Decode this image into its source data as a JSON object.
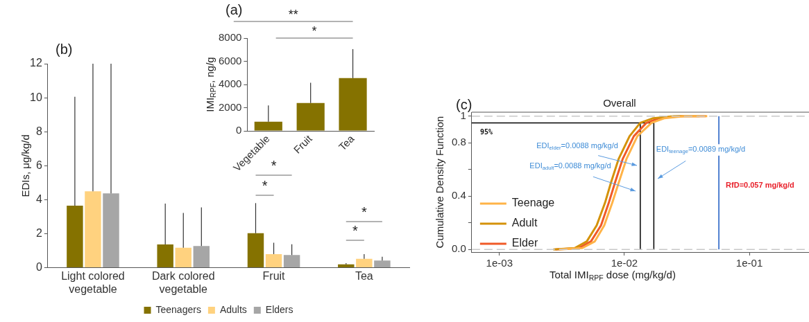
{
  "chart_data": [
    {
      "type": "bar",
      "title": "(a)",
      "ylabel": "IMI$_{RPF}$, ng/g",
      "categories": [
        "Vegetable",
        "Fruit",
        "Tea"
      ],
      "values": [
        800,
        2400,
        4550
      ],
      "errors": [
        [
          800,
          2200
        ],
        [
          2400,
          4150
        ],
        [
          4550,
          7050
        ]
      ],
      "color": "#857200",
      "ylim": [
        0,
        8000
      ],
      "yticks": [
        0,
        2000,
        4000,
        6000,
        8000
      ],
      "grid": false,
      "annotations": [
        "**",
        "*"
      ]
    },
    {
      "type": "bar",
      "title": "(b)",
      "ylabel": "EDIs, μg/kg/d",
      "categories": [
        "Light colored vegetable",
        "Dark colored vegetable",
        "Fruit",
        "Tea"
      ],
      "series": [
        {
          "name": "Teenagers",
          "color": "#857200",
          "values": [
            3.65,
            1.37,
            2.03,
            0.2
          ],
          "errors": [
            [
              3.65,
              10.05
            ],
            [
              1.37,
              3.77
            ],
            [
              2.03,
              3.8
            ],
            [
              0.2,
              0.27
            ]
          ]
        },
        {
          "name": "Adults",
          "color": "#ffd27f",
          "values": [
            4.5,
            1.18,
            0.8,
            0.52
          ],
          "errors": [
            [
              4.5,
              12
            ],
            [
              1.18,
              3.22
            ],
            [
              0.8,
              1.47
            ],
            [
              0.52,
              0.8
            ]
          ]
        },
        {
          "name": "Elders",
          "color": "#a6a6a6",
          "values": [
            4.37,
            1.28,
            0.75,
            0.42
          ],
          "errors": [
            [
              4.37,
              12
            ],
            [
              1.28,
              3.55
            ],
            [
              0.75,
              1.38
            ],
            [
              0.42,
              0.65
            ]
          ]
        }
      ],
      "ylim": [
        0,
        12
      ],
      "yticks": [
        0,
        2,
        4,
        6,
        8,
        10,
        12
      ],
      "grid": false,
      "legend": "bottom",
      "annotations": [
        "*",
        "*",
        "*",
        "*"
      ]
    },
    {
      "type": "line",
      "title": "(c)",
      "subtitle": "Overall",
      "xlabel": "Total IMI$_{RPF}$ dose (mg/kg/d)",
      "ylabel": "Cumulative Density Function",
      "log": "x",
      "series": [
        {
          "name": "Teenage",
          "color": "#ffb347",
          "x": [
            0.003,
            0.0046,
            0.0058,
            0.0069,
            0.008,
            0.009,
            0.0104,
            0.0127,
            0.0165,
            0.021,
            0.03,
            0.046
          ],
          "values": [
            0,
            0.01,
            0.06,
            0.18,
            0.35,
            0.5,
            0.68,
            0.85,
            0.95,
            0.985,
            1,
            1
          ]
        },
        {
          "name": "Adult",
          "color": "#d4920a",
          "x": [
            0.0027,
            0.004,
            0.005,
            0.006,
            0.007,
            0.0078,
            0.009,
            0.011,
            0.0134,
            0.017,
            0.025,
            0.04
          ],
          "values": [
            0,
            0.01,
            0.06,
            0.18,
            0.35,
            0.5,
            0.68,
            0.85,
            0.95,
            0.985,
            1,
            1
          ]
        },
        {
          "name": "Elder",
          "color": "#f05a28",
          "x": [
            0.0028,
            0.0043,
            0.0054,
            0.0065,
            0.0075,
            0.0084,
            0.0097,
            0.0119,
            0.015,
            0.019,
            0.028,
            0.045
          ],
          "values": [
            0,
            0.01,
            0.06,
            0.18,
            0.35,
            0.5,
            0.68,
            0.85,
            0.95,
            0.985,
            1,
            1
          ]
        },
        {
          "color": "#000000",
          "x": [
            0.0006,
            0.0172
          ],
          "values": [
            0.95,
            0.95
          ]
        },
        {
          "color": "#000000",
          "x": [
            0.0134,
            0.0134
          ],
          "values": [
            0,
            0.95
          ]
        },
        {
          "color": "#000000",
          "x": [
            0.0172,
            0.0172
          ],
          "values": [
            0,
            0.95
          ]
        }
      ],
      "xlim": [
        0.0006,
        0.3
      ],
      "xticks": [
        {
          "value": 0.001,
          "label": "1e-03"
        },
        {
          "value": 0.01,
          "label": "1e-02"
        },
        {
          "value": 0.1,
          "label": "1e-01"
        }
      ],
      "ylim": [
        -0.02,
        1.03
      ],
      "yticks": [
        {
          "value": 0,
          "label": "0.0"
        },
        {
          "value": 0.2,
          "label": null
        },
        {
          "value": 0.4,
          "label": "0.4"
        },
        {
          "value": 0.6,
          "label": null
        },
        {
          "value": 0.8,
          "label": "0.8"
        },
        {
          "value": 1,
          "label": "1"
        }
      ],
      "grid": false,
      "legend": "bottom left",
      "ref_lines": [
        {
          "axis": "y",
          "value": 0,
          "color": "#c8c8c8",
          "line_style": "dashed"
        },
        {
          "axis": "y",
          "value": 1,
          "color": "#c8c8c8",
          "line_style": "dashed"
        },
        {
          "axis": "x",
          "value": 0.057,
          "label": "RfD=0.057 mg/kg/d",
          "color": "#4f7fd0"
        }
      ],
      "annotations": [
        {
          "text": "95%",
          "x": 0.0007,
          "y": 0.95
        },
        "EDI$_{elder}$=0.0088 mg/kg/d",
        "EDI$_{adult}$=0.0088 mg/kg/d",
        "EDI$_{teenage}$=0.0089 mg/kg/d"
      ]
    }
  ]
}
